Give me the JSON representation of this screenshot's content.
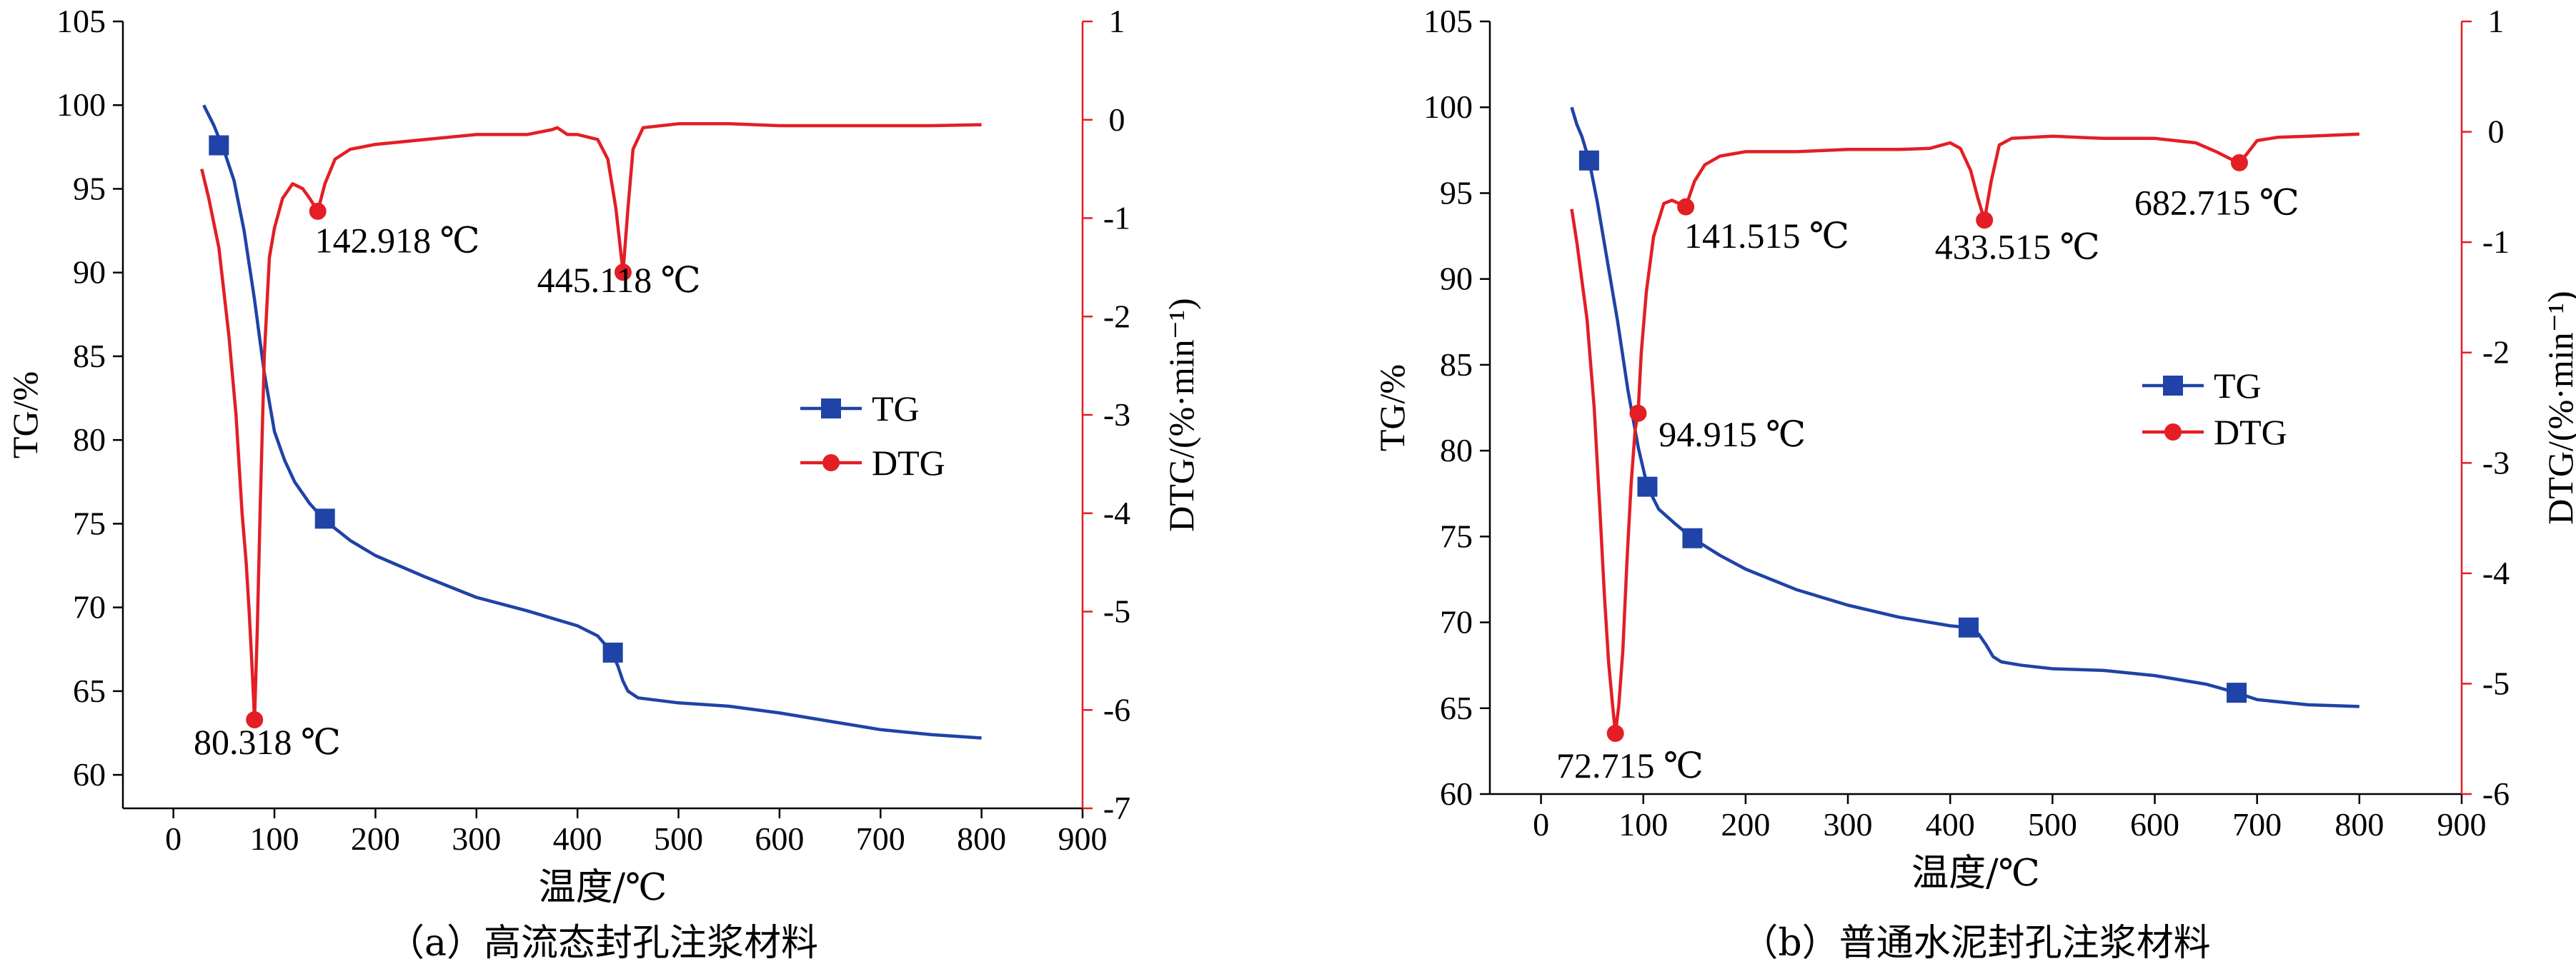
{
  "colors": {
    "tg": "#1f43a6",
    "dtg": "#e31e25",
    "axis": "#000000"
  },
  "chart_data": [
    {
      "type": "line",
      "caption": "（a）高流态封孔注浆材料",
      "xlabel": "温度/℃",
      "ylabel": "TG/%",
      "y2label": "DTG/(%·min⁻¹)",
      "xlim": [
        -50,
        900
      ],
      "x_ticks": [
        0,
        100,
        200,
        300,
        400,
        500,
        600,
        700,
        800,
        900
      ],
      "ylim": [
        58,
        105
      ],
      "y_ticks": [
        60,
        65,
        70,
        75,
        80,
        85,
        90,
        95,
        100,
        105
      ],
      "y2lim": [
        -7,
        1
      ],
      "y2_ticks": [
        -7,
        -6,
        -5,
        -4,
        -3,
        -2,
        -1,
        0,
        1
      ],
      "legend": {
        "position": "right-middle",
        "entries": [
          "TG",
          "DTG"
        ]
      },
      "series": [
        {
          "name": "TG",
          "axis": "left",
          "x": [
            30,
            40,
            50,
            60,
            70,
            80,
            90,
            100,
            110,
            120,
            135,
            150,
            175,
            200,
            250,
            300,
            350,
            400,
            420,
            430,
            435,
            440,
            445,
            450,
            460,
            500,
            550,
            600,
            650,
            700,
            750,
            800
          ],
          "y": [
            100,
            98.8,
            97.3,
            95.5,
            92.5,
            88.5,
            84,
            80.5,
            78.8,
            77.5,
            76.2,
            75.2,
            74,
            73.1,
            71.8,
            70.6,
            69.8,
            68.9,
            68.3,
            67.6,
            67.2,
            66.5,
            65.6,
            65,
            64.6,
            64.3,
            64.1,
            63.7,
            63.2,
            62.7,
            62.4,
            62.2
          ],
          "markers_x": [
            45,
            150,
            435
          ],
          "markers_y": [
            97.6,
            75.3,
            67.3
          ]
        },
        {
          "name": "DTG",
          "axis": "right",
          "x": [
            28,
            35,
            45,
            55,
            62,
            68,
            72,
            75,
            78,
            80.3,
            83,
            86,
            90,
            95,
            100,
            108,
            118,
            128,
            135,
            142.9,
            150,
            160,
            175,
            200,
            250,
            300,
            350,
            375,
            380,
            390,
            400,
            420,
            430,
            438,
            445.1,
            450,
            455,
            465,
            500,
            550,
            600,
            650,
            700,
            750,
            800
          ],
          "y": [
            -0.5,
            -0.8,
            -1.3,
            -2.2,
            -3.0,
            -4.0,
            -4.5,
            -5.0,
            -5.6,
            -6.1,
            -5.2,
            -3.9,
            -2.4,
            -1.4,
            -1.1,
            -0.8,
            -0.65,
            -0.7,
            -0.8,
            -0.93,
            -0.65,
            -0.4,
            -0.3,
            -0.25,
            -0.2,
            -0.15,
            -0.15,
            -0.1,
            -0.08,
            -0.15,
            -0.15,
            -0.2,
            -0.4,
            -0.9,
            -1.55,
            -0.9,
            -0.3,
            -0.08,
            -0.04,
            -0.04,
            -0.06,
            -0.06,
            -0.06,
            -0.06,
            -0.05
          ],
          "markers_x": [
            142.918,
            445.118,
            80.318
          ],
          "markers_y": [
            -0.93,
            -1.55,
            -6.1
          ]
        }
      ],
      "annotations": [
        {
          "text": "142.918 ℃",
          "x": 140,
          "y": -1.35
        },
        {
          "text": "445.118 ℃",
          "x": 360,
          "y": -1.75
        },
        {
          "text": "80.318 ℃",
          "x": 20,
          "y": -6.45
        }
      ]
    },
    {
      "type": "line",
      "caption": "（b）普通水泥封孔注浆材料",
      "xlabel": "温度/℃",
      "ylabel": "TG/%",
      "y2label": "DTG/(%·min⁻¹)",
      "xlim": [
        -50,
        900
      ],
      "x_ticks": [
        0,
        100,
        200,
        300,
        400,
        500,
        600,
        700,
        800,
        900
      ],
      "ylim": [
        60,
        105
      ],
      "y_ticks": [
        60,
        65,
        70,
        75,
        80,
        85,
        90,
        95,
        100,
        105
      ],
      "y2lim": [
        -6,
        1
      ],
      "y2_ticks": [
        -6,
        -5,
        -4,
        -3,
        -2,
        -1,
        0,
        1
      ],
      "legend": {
        "position": "right-middle",
        "entries": [
          "TG",
          "DTG"
        ]
      },
      "series": [
        {
          "name": "TG",
          "axis": "left",
          "x": [
            30,
            35,
            40,
            47,
            55,
            65,
            75,
            85,
            95,
            104,
            115,
            130,
            148,
            175,
            200,
            250,
            300,
            350,
            400,
            418,
            428,
            435,
            442,
            450,
            470,
            500,
            550,
            600,
            650,
            680,
            700,
            750,
            800
          ],
          "y": [
            100,
            99,
            98.3,
            96.9,
            94.5,
            91,
            87.5,
            83.5,
            80.2,
            77.9,
            76.6,
            75.8,
            74.9,
            73.9,
            73.1,
            71.9,
            71,
            70.3,
            69.8,
            69.7,
            69.3,
            68.7,
            68,
            67.7,
            67.5,
            67.3,
            67.2,
            66.9,
            66.4,
            65.9,
            65.5,
            65.2,
            65.1
          ],
          "markers_x": [
            47,
            104,
            148,
            418,
            680
          ],
          "markers_y": [
            96.9,
            77.9,
            74.9,
            69.7,
            65.9
          ]
        },
        {
          "name": "DTG",
          "axis": "right",
          "x": [
            30,
            35,
            45,
            52,
            58,
            62,
            66,
            70,
            72.7,
            76,
            80,
            84,
            88,
            92,
            94.9,
            98,
            103,
            110,
            120,
            128,
            135,
            141.5,
            150,
            160,
            175,
            200,
            250,
            300,
            350,
            380,
            400,
            410,
            420,
            427,
            433.5,
            440,
            448,
            460,
            500,
            550,
            600,
            640,
            660,
            675,
            682.7,
            690,
            700,
            720,
            750,
            800
          ],
          "y": [
            -0.7,
            -1.0,
            -1.7,
            -2.5,
            -3.5,
            -4.2,
            -4.8,
            -5.2,
            -5.45,
            -5.2,
            -4.7,
            -3.9,
            -3.2,
            -2.7,
            -2.55,
            -2.0,
            -1.45,
            -0.95,
            -0.65,
            -0.62,
            -0.65,
            -0.68,
            -0.45,
            -0.3,
            -0.22,
            -0.18,
            -0.18,
            -0.16,
            -0.16,
            -0.15,
            -0.1,
            -0.15,
            -0.35,
            -0.6,
            -0.8,
            -0.45,
            -0.12,
            -0.06,
            -0.04,
            -0.06,
            -0.06,
            -0.1,
            -0.18,
            -0.25,
            -0.28,
            -0.2,
            -0.08,
            -0.05,
            -0.04,
            -0.02
          ],
          "markers_x": [
            141.515,
            433.515,
            682.715,
            94.915,
            72.715
          ],
          "markers_y": [
            -0.68,
            -0.8,
            -0.28,
            -2.55,
            -5.45
          ]
        }
      ],
      "annotations": [
        {
          "text": "141.515 ℃",
          "x": 140,
          "y": -1.05
        },
        {
          "text": "433.515 ℃",
          "x": 385,
          "y": -1.15
        },
        {
          "text": "682.715 ℃",
          "x": 580,
          "y": -0.75
        },
        {
          "text": "94.915 ℃",
          "x": 115,
          "y": -2.85
        },
        {
          "text": "72.715 ℃",
          "x": 15,
          "y": -5.85
        }
      ]
    }
  ]
}
